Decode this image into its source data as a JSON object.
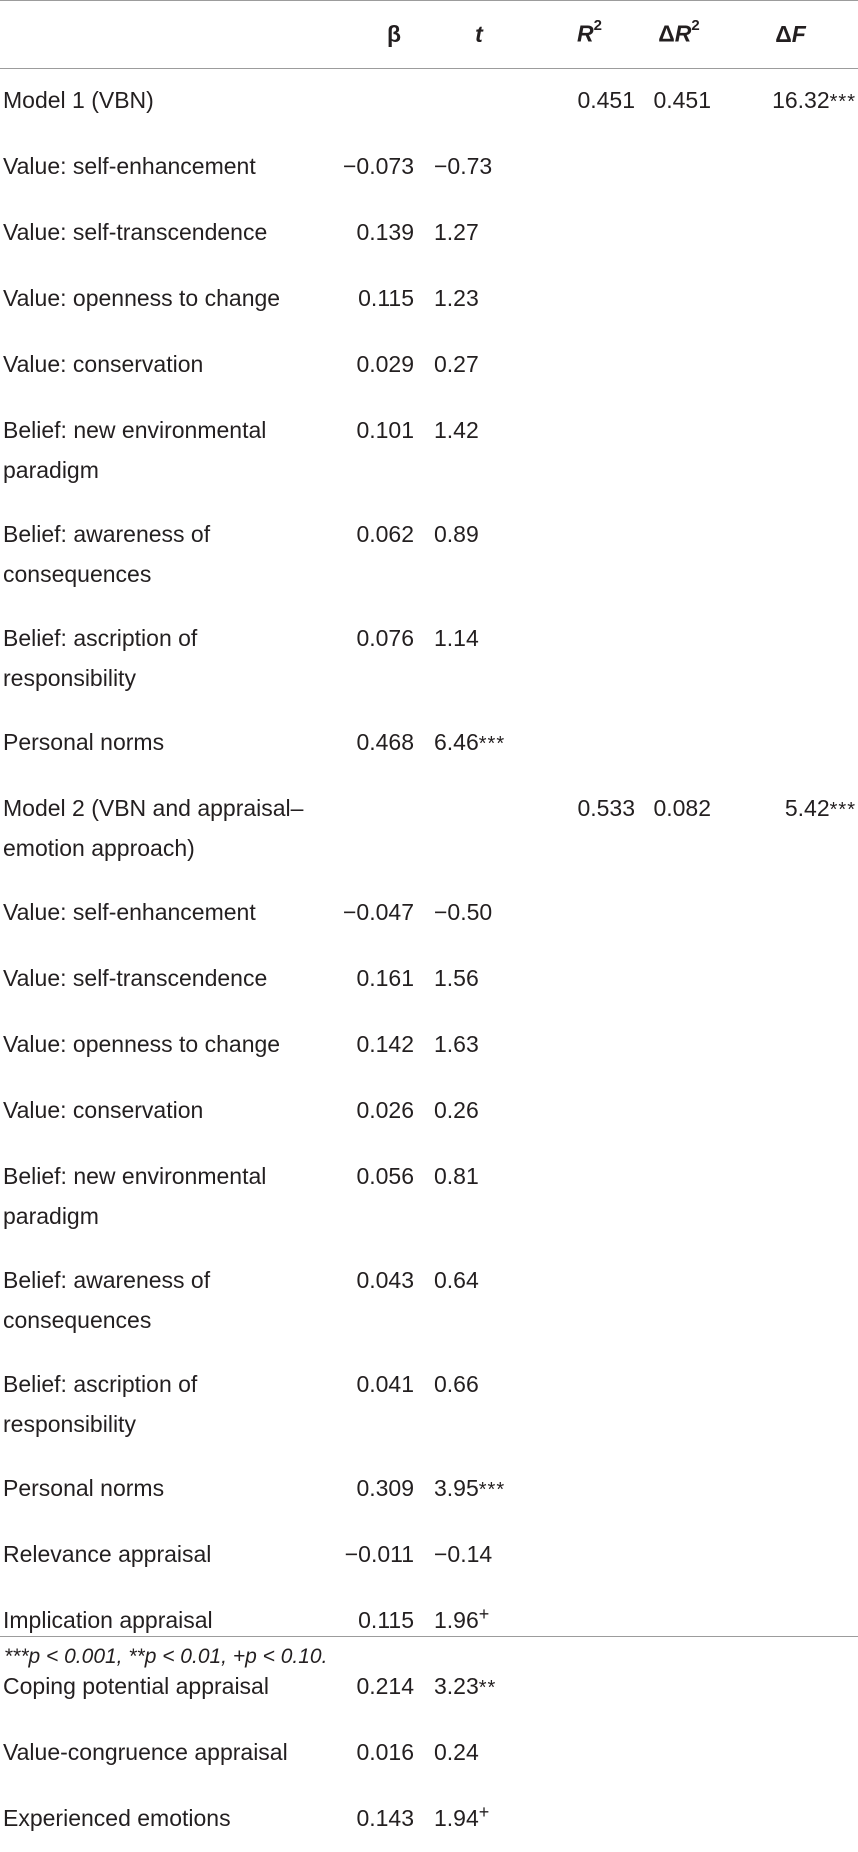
{
  "headers": {
    "label": "",
    "beta": "β",
    "t": "t",
    "r2": "R",
    "r2_sup": "2",
    "dr2_delta": "Δ",
    "dr2": "R",
    "dr2_sup": "2",
    "df_delta": "Δ",
    "df": "F"
  },
  "rows": [
    {
      "label": "Model 1 (VBN)",
      "beta": "",
      "t": "",
      "t_mark": "",
      "r2": "0.451",
      "dr2": "0.451",
      "df": "16.32",
      "df_mark": "***"
    },
    {
      "label": "Value: self-enhancement",
      "beta": "−0.073",
      "t": "−0.73",
      "t_mark": "",
      "r2": "",
      "dr2": "",
      "df": "",
      "df_mark": ""
    },
    {
      "label": "Value: self-transcendence",
      "beta": "0.139",
      "t": "1.27",
      "t_mark": "",
      "r2": "",
      "dr2": "",
      "df": "",
      "df_mark": ""
    },
    {
      "label": "Value: openness to change",
      "beta": "0.115",
      "t": "1.23",
      "t_mark": "",
      "r2": "",
      "dr2": "",
      "df": "",
      "df_mark": ""
    },
    {
      "label": "Value: conservation",
      "beta": "0.029",
      "t": "0.27",
      "t_mark": "",
      "r2": "",
      "dr2": "",
      "df": "",
      "df_mark": ""
    },
    {
      "label": "Belief: new environmental paradigm",
      "beta": "0.101",
      "t": "1.42",
      "t_mark": "",
      "r2": "",
      "dr2": "",
      "df": "",
      "df_mark": ""
    },
    {
      "label": "Belief: awareness of consequences",
      "beta": "0.062",
      "t": "0.89",
      "t_mark": "",
      "r2": "",
      "dr2": "",
      "df": "",
      "df_mark": ""
    },
    {
      "label": "Belief: ascription of responsibility",
      "beta": "0.076",
      "t": "1.14",
      "t_mark": "",
      "r2": "",
      "dr2": "",
      "df": "",
      "df_mark": ""
    },
    {
      "label": "Personal norms",
      "beta": "0.468",
      "t": "6.46",
      "t_mark": "***",
      "r2": "",
      "dr2": "",
      "df": "",
      "df_mark": ""
    },
    {
      "label": "Model 2 (VBN and appraisal–emotion approach)",
      "beta": "",
      "t": "",
      "t_mark": "",
      "r2": "0.533",
      "dr2": "0.082",
      "df": "5.42",
      "df_mark": "***"
    },
    {
      "label": "Value: self-enhancement",
      "beta": "−0.047",
      "t": "−0.50",
      "t_mark": "",
      "r2": "",
      "dr2": "",
      "df": "",
      "df_mark": ""
    },
    {
      "label": "Value: self-transcendence",
      "beta": "0.161",
      "t": "1.56",
      "t_mark": "",
      "r2": "",
      "dr2": "",
      "df": "",
      "df_mark": ""
    },
    {
      "label": "Value: openness to change",
      "beta": "0.142",
      "t": "1.63",
      "t_mark": "",
      "r2": "",
      "dr2": "",
      "df": "",
      "df_mark": ""
    },
    {
      "label": "Value: conservation",
      "beta": "0.026",
      "t": "0.26",
      "t_mark": "",
      "r2": "",
      "dr2": "",
      "df": "",
      "df_mark": ""
    },
    {
      "label": "Belief: new environmental paradigm",
      "beta": "0.056",
      "t": "0.81",
      "t_mark": "",
      "r2": "",
      "dr2": "",
      "df": "",
      "df_mark": ""
    },
    {
      "label": "Belief: awareness of consequences",
      "beta": "0.043",
      "t": "0.64",
      "t_mark": "",
      "r2": "",
      "dr2": "",
      "df": "",
      "df_mark": ""
    },
    {
      "label": "Belief: ascription of responsibility",
      "beta": "0.041",
      "t": "0.66",
      "t_mark": "",
      "r2": "",
      "dr2": "",
      "df": "",
      "df_mark": ""
    },
    {
      "label": "Personal norms",
      "beta": "0.309",
      "t": "3.95",
      "t_mark": "***",
      "r2": "",
      "dr2": "",
      "df": "",
      "df_mark": ""
    },
    {
      "label": "Relevance appraisal",
      "beta": "−0.011",
      "t": "−0.14",
      "t_mark": "",
      "r2": "",
      "dr2": "",
      "df": "",
      "df_mark": ""
    },
    {
      "label": "Implication appraisal",
      "beta": "0.115",
      "t": "1.96",
      "t_mark": "+",
      "r2": "",
      "dr2": "",
      "df": "",
      "df_mark": ""
    },
    {
      "label": "Coping potential appraisal",
      "beta": "0.214",
      "t": "3.23",
      "t_mark": "**",
      "r2": "",
      "dr2": "",
      "df": "",
      "df_mark": ""
    },
    {
      "label": "Value-congruence appraisal",
      "beta": "0.016",
      "t": "0.24",
      "t_mark": "",
      "r2": "",
      "dr2": "",
      "df": "",
      "df_mark": ""
    },
    {
      "label": "Experienced emotions",
      "beta": "0.143",
      "t": "1.94",
      "t_mark": "+",
      "r2": "",
      "dr2": "",
      "df": "",
      "df_mark": ""
    }
  ],
  "footnote": "***p < 0.001,  **p < 0.01, +p < 0.10."
}
